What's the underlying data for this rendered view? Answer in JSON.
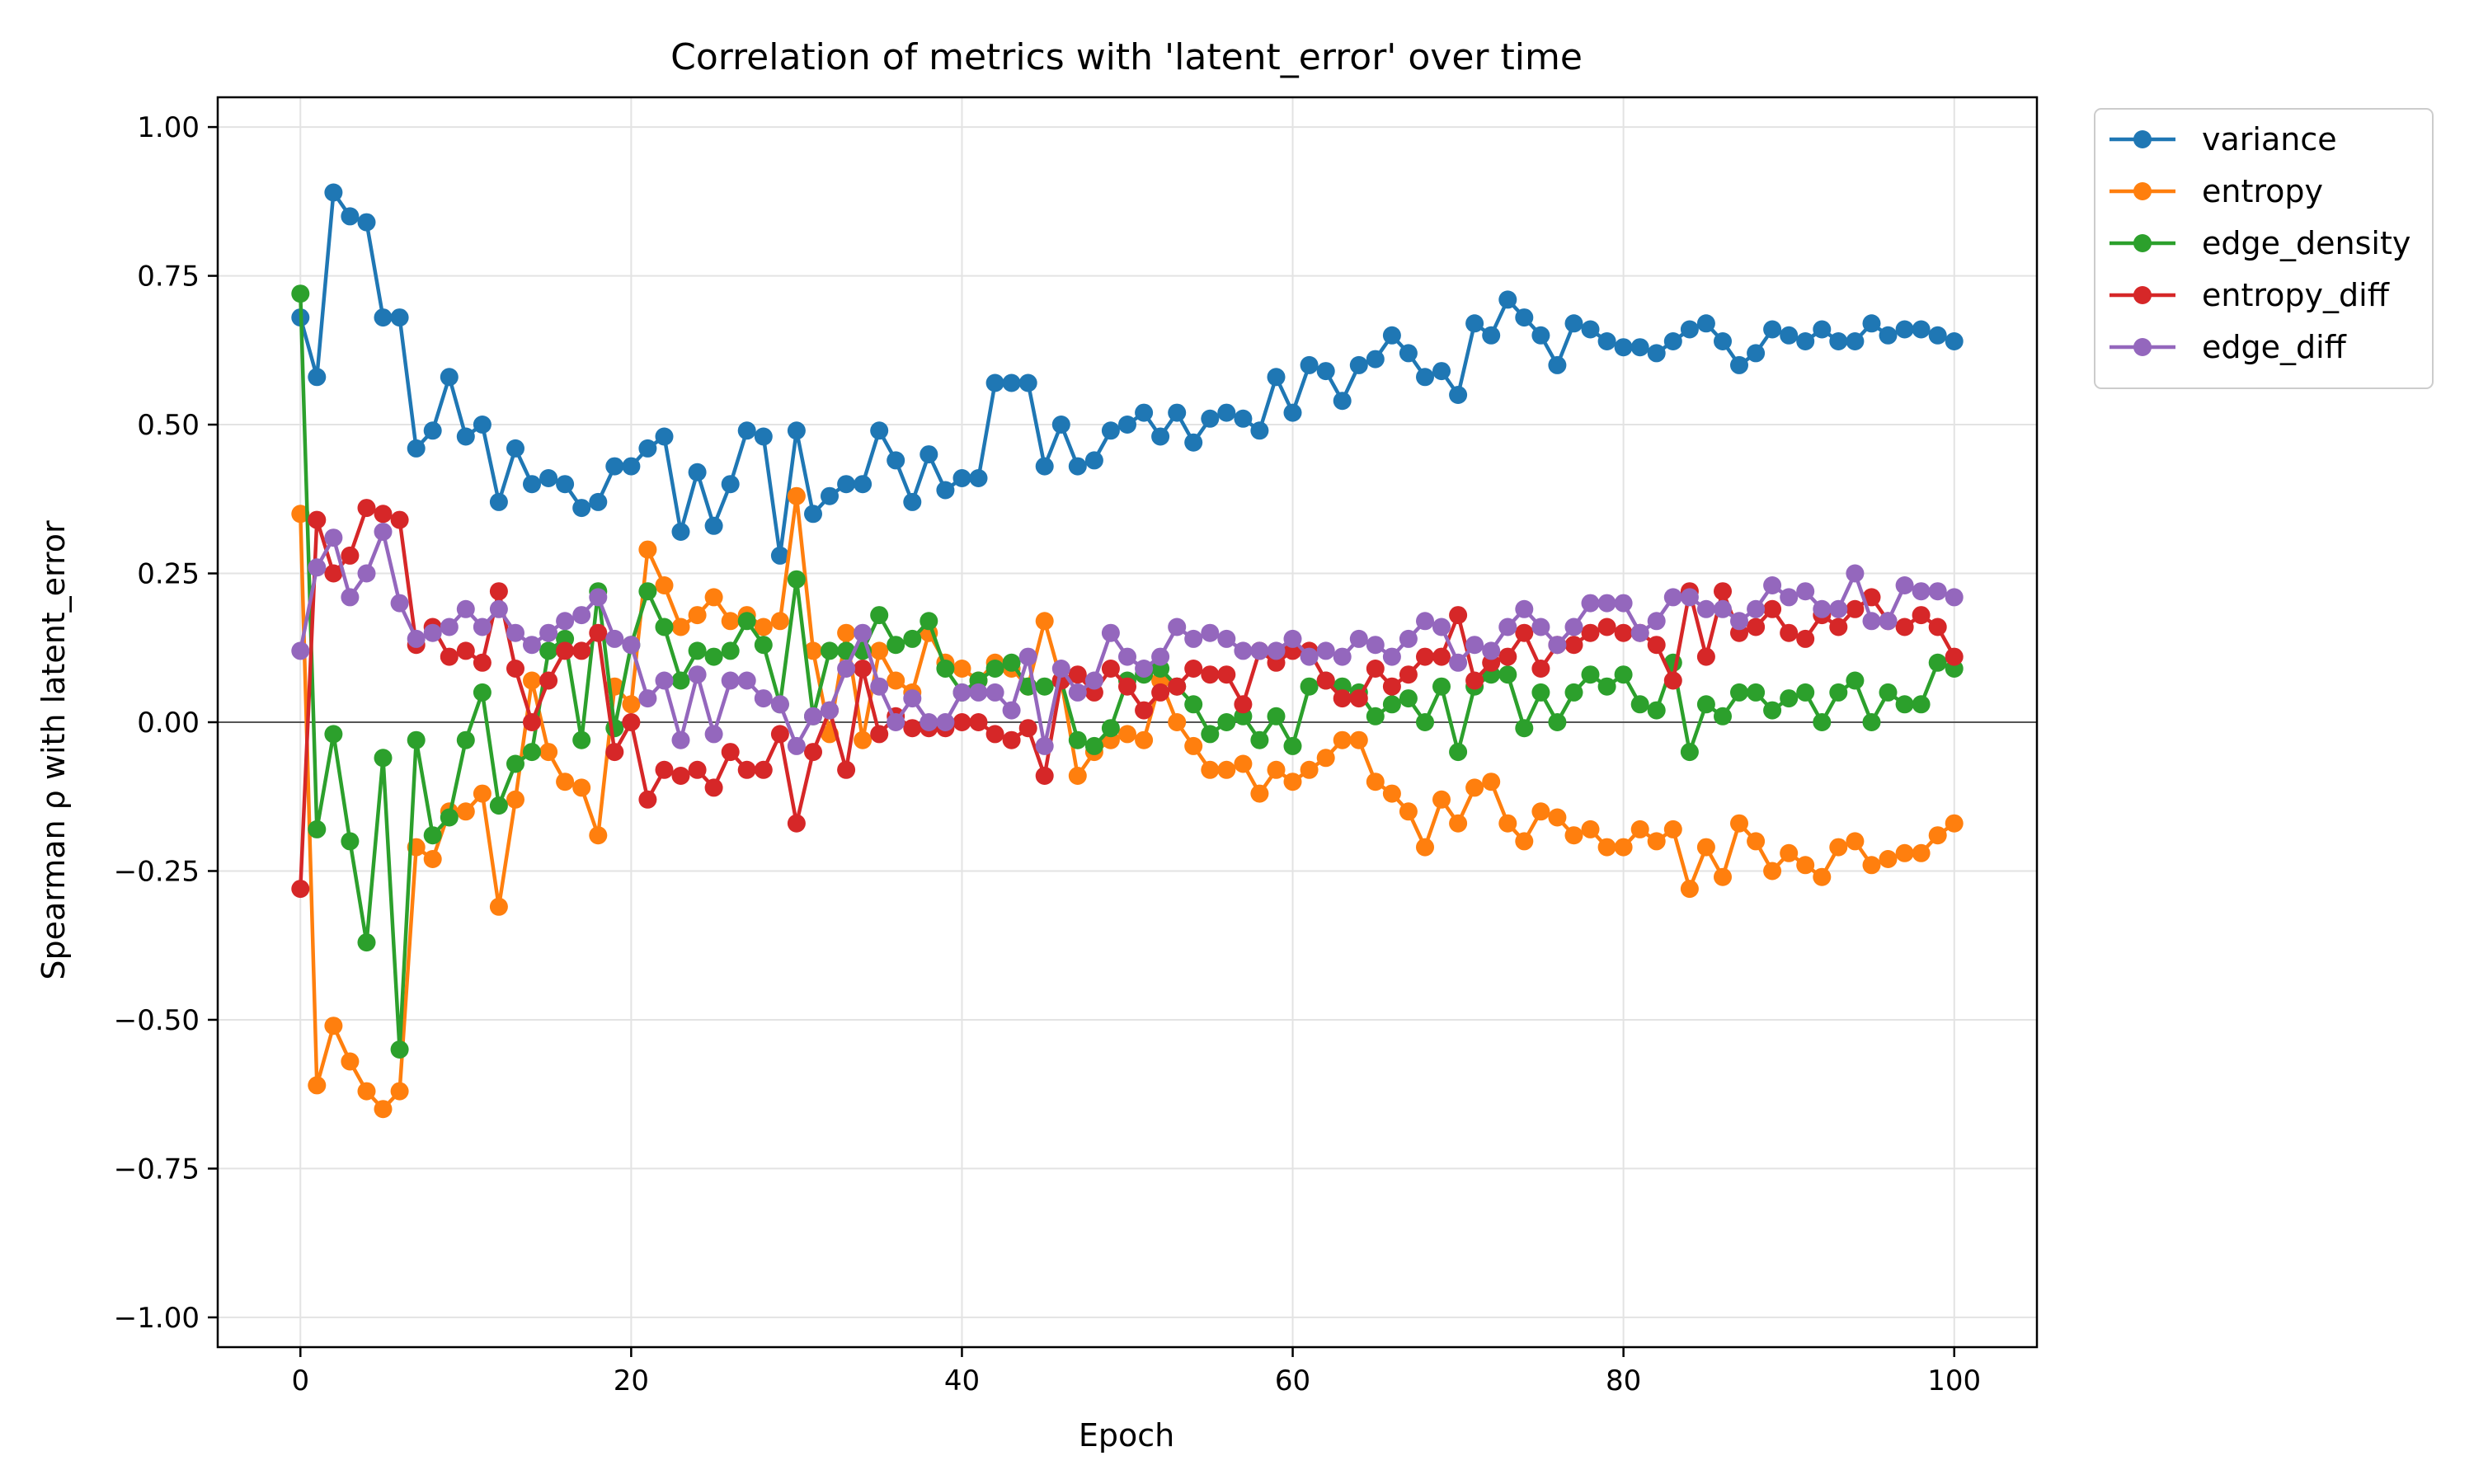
{
  "chart_data": {
    "type": "line",
    "title": "Correlation of metrics with 'latent_error' over time",
    "xlabel": "Epoch",
    "ylabel": "Spearman ρ with latent_error",
    "xlim": [
      -5,
      105
    ],
    "ylim": [
      -1.05,
      1.05
    ],
    "x_ticks": [
      0,
      20,
      40,
      60,
      80,
      100
    ],
    "x_tick_labels": [
      "0",
      "20",
      "40",
      "60",
      "80",
      "100"
    ],
    "y_ticks": [
      -1.0,
      -0.75,
      -0.5,
      -0.25,
      0.0,
      0.25,
      0.5,
      0.75,
      1.0
    ],
    "y_tick_labels": [
      "−1.00",
      "−0.75",
      "−0.50",
      "−0.25",
      "0.00",
      "0.25",
      "0.50",
      "0.75",
      "1.00"
    ],
    "grid": true,
    "zero_line": true,
    "legend_position": "outside-top-right",
    "x_start": 0,
    "x_step": 1,
    "series": [
      {
        "name": "variance",
        "color": "#1f77b4",
        "values": [
          0.68,
          0.58,
          0.89,
          0.85,
          0.84,
          0.68,
          0.68,
          0.46,
          0.49,
          0.58,
          0.48,
          0.5,
          0.37,
          0.46,
          0.4,
          0.41,
          0.4,
          0.36,
          0.37,
          0.43,
          0.43,
          0.46,
          0.48,
          0.32,
          0.42,
          0.33,
          0.4,
          0.49,
          0.48,
          0.28,
          0.49,
          0.35,
          0.38,
          0.4,
          0.4,
          0.49,
          0.44,
          0.37,
          0.45,
          0.39,
          0.41,
          0.41,
          0.57,
          0.57,
          0.57,
          0.43,
          0.5,
          0.43,
          0.44,
          0.49,
          0.5,
          0.52,
          0.48,
          0.52,
          0.47,
          0.51,
          0.52,
          0.51,
          0.49,
          0.58,
          0.52,
          0.6,
          0.59,
          0.54,
          0.6,
          0.61,
          0.65,
          0.62,
          0.58,
          0.59,
          0.55,
          0.67,
          0.65,
          0.71,
          0.68,
          0.65,
          0.6,
          0.67,
          0.66,
          0.64,
          0.63,
          0.63,
          0.62,
          0.64,
          0.66,
          0.67,
          0.64,
          0.6,
          0.62,
          0.66,
          0.65,
          0.64,
          0.66,
          0.64,
          0.64,
          0.67,
          0.65,
          0.66,
          0.66,
          0.65,
          0.64
        ]
      },
      {
        "name": "entropy",
        "color": "#ff7f0e",
        "values": [
          0.35,
          -0.61,
          -0.51,
          -0.57,
          -0.62,
          -0.65,
          -0.62,
          -0.21,
          -0.23,
          -0.15,
          -0.15,
          -0.12,
          -0.31,
          -0.13,
          0.07,
          -0.05,
          -0.1,
          -0.11,
          -0.19,
          0.06,
          0.03,
          0.29,
          0.23,
          0.16,
          0.18,
          0.21,
          0.17,
          0.18,
          0.16,
          0.17,
          0.38,
          0.12,
          -0.02,
          0.15,
          -0.03,
          0.12,
          0.07,
          0.05,
          0.15,
          0.1,
          0.09,
          0.07,
          0.1,
          0.09,
          0.06,
          0.17,
          0.07,
          -0.09,
          -0.05,
          -0.03,
          -0.02,
          -0.03,
          0.07,
          0.0,
          -0.04,
          -0.08,
          -0.08,
          -0.07,
          -0.12,
          -0.08,
          -0.1,
          -0.08,
          -0.06,
          -0.03,
          -0.03,
          -0.1,
          -0.12,
          -0.15,
          -0.21,
          -0.13,
          -0.17,
          -0.11,
          -0.1,
          -0.17,
          -0.2,
          -0.15,
          -0.16,
          -0.19,
          -0.18,
          -0.21,
          -0.21,
          -0.18,
          -0.2,
          -0.18,
          -0.28,
          -0.21,
          -0.26,
          -0.17,
          -0.2,
          -0.25,
          -0.22,
          -0.24,
          -0.26,
          -0.21,
          -0.2,
          -0.24,
          -0.23,
          -0.22,
          -0.22,
          -0.19,
          -0.17
        ]
      },
      {
        "name": "edge_density",
        "color": "#2ca02c",
        "values": [
          0.72,
          -0.18,
          -0.02,
          -0.2,
          -0.37,
          -0.06,
          -0.55,
          -0.03,
          -0.19,
          -0.16,
          -0.03,
          0.05,
          -0.14,
          -0.07,
          -0.05,
          0.12,
          0.14,
          -0.03,
          0.22,
          -0.01,
          0.13,
          0.22,
          0.16,
          0.07,
          0.12,
          0.11,
          0.12,
          0.17,
          0.13,
          0.03,
          0.24,
          0.01,
          0.12,
          0.12,
          0.12,
          0.18,
          0.13,
          0.14,
          0.17,
          0.09,
          0.05,
          0.07,
          0.09,
          0.1,
          0.06,
          0.06,
          0.07,
          -0.03,
          -0.04,
          -0.01,
          0.07,
          0.08,
          0.09,
          0.06,
          0.03,
          -0.02,
          0.0,
          0.01,
          -0.03,
          0.01,
          -0.04,
          0.06,
          0.07,
          0.06,
          0.05,
          0.01,
          0.03,
          0.04,
          0.0,
          0.06,
          -0.05,
          0.06,
          0.08,
          0.08,
          -0.01,
          0.05,
          0.0,
          0.05,
          0.08,
          0.06,
          0.08,
          0.03,
          0.02,
          0.1,
          -0.05,
          0.03,
          0.01,
          0.05,
          0.05,
          0.02,
          0.04,
          0.05,
          0.0,
          0.05,
          0.07,
          0.0,
          0.05,
          0.03,
          0.03,
          0.1,
          0.09
        ]
      },
      {
        "name": "entropy_diff",
        "color": "#d62728",
        "values": [
          -0.28,
          0.34,
          0.25,
          0.28,
          0.36,
          0.35,
          0.34,
          0.13,
          0.16,
          0.11,
          0.12,
          0.1,
          0.22,
          0.09,
          0.0,
          0.07,
          0.12,
          0.12,
          0.15,
          -0.05,
          0.0,
          -0.13,
          -0.08,
          -0.09,
          -0.08,
          -0.11,
          -0.05,
          -0.08,
          -0.08,
          -0.02,
          -0.17,
          -0.05,
          0.02,
          -0.08,
          0.09,
          -0.02,
          0.01,
          -0.01,
          -0.01,
          -0.01,
          0.0,
          0.0,
          -0.02,
          -0.03,
          -0.01,
          -0.09,
          0.07,
          0.08,
          0.05,
          0.09,
          0.06,
          0.02,
          0.05,
          0.06,
          0.09,
          0.08,
          0.08,
          0.03,
          0.12,
          0.1,
          0.12,
          0.12,
          0.07,
          0.04,
          0.04,
          0.09,
          0.06,
          0.08,
          0.11,
          0.11,
          0.18,
          0.07,
          0.1,
          0.11,
          0.15,
          0.09,
          0.13,
          0.13,
          0.15,
          0.16,
          0.15,
          0.15,
          0.13,
          0.07,
          0.22,
          0.11,
          0.22,
          0.15,
          0.16,
          0.19,
          0.15,
          0.14,
          0.18,
          0.16,
          0.19,
          0.21,
          0.17,
          0.16,
          0.18,
          0.16,
          0.11
        ]
      },
      {
        "name": "edge_diff",
        "color": "#9467bd",
        "values": [
          0.12,
          0.26,
          0.31,
          0.21,
          0.25,
          0.32,
          0.2,
          0.14,
          0.15,
          0.16,
          0.19,
          0.16,
          0.19,
          0.15,
          0.13,
          0.15,
          0.17,
          0.18,
          0.21,
          0.14,
          0.13,
          0.04,
          0.07,
          -0.03,
          0.08,
          -0.02,
          0.07,
          0.07,
          0.04,
          0.03,
          -0.04,
          0.01,
          0.02,
          0.09,
          0.15,
          0.06,
          0.0,
          0.04,
          0.0,
          0.0,
          0.05,
          0.05,
          0.05,
          0.02,
          0.11,
          -0.04,
          0.09,
          0.05,
          0.07,
          0.15,
          0.11,
          0.09,
          0.11,
          0.16,
          0.14,
          0.15,
          0.14,
          0.12,
          0.12,
          0.12,
          0.14,
          0.11,
          0.12,
          0.11,
          0.14,
          0.13,
          0.11,
          0.14,
          0.17,
          0.16,
          0.1,
          0.13,
          0.12,
          0.16,
          0.19,
          0.16,
          0.13,
          0.16,
          0.2,
          0.2,
          0.2,
          0.15,
          0.17,
          0.21,
          0.21,
          0.19,
          0.19,
          0.17,
          0.19,
          0.23,
          0.21,
          0.22,
          0.19,
          0.19,
          0.25,
          0.17,
          0.17,
          0.23,
          0.22,
          0.22,
          0.21
        ]
      }
    ]
  }
}
